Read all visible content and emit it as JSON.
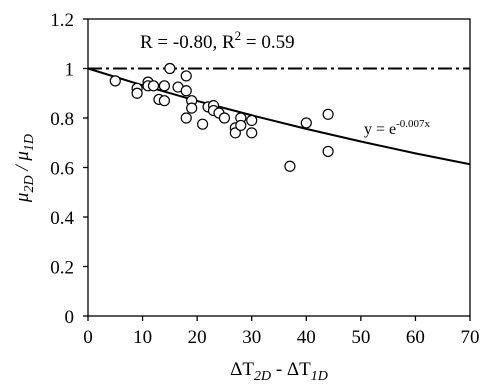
{
  "chart_data": {
    "type": "scatter",
    "x": [
      5,
      9,
      9,
      11,
      11,
      12,
      13,
      14,
      14,
      15,
      16.5,
      18,
      18,
      18,
      19,
      19,
      21,
      22,
      23,
      23,
      24,
      25,
      27,
      27,
      28,
      28,
      30,
      30,
      37,
      40,
      44,
      44
    ],
    "values": [
      0.95,
      0.92,
      0.9,
      0.945,
      0.93,
      0.93,
      0.875,
      0.87,
      0.93,
      1.0,
      0.925,
      0.97,
      0.91,
      0.8,
      0.87,
      0.84,
      0.775,
      0.845,
      0.85,
      0.83,
      0.82,
      0.8,
      0.76,
      0.74,
      0.8,
      0.77,
      0.79,
      0.74,
      0.605,
      0.78,
      0.815,
      0.665
    ],
    "fit_curve": {
      "x": [
        0,
        10,
        20,
        30,
        40,
        50,
        60,
        70
      ],
      "values": [
        1,
        0.932,
        0.869,
        0.811,
        0.756,
        0.705,
        0.657,
        0.613
      ]
    },
    "reference_line": 1,
    "annotation": [
      "R = -0.80, R",
      "2",
      " = 0.59"
    ],
    "fit_label": [
      "y = e",
      "-0.007x"
    ],
    "x_label": [
      "ΔT",
      "2D",
      " - ΔT",
      "1D"
    ],
    "y_label": [
      "μ",
      "2D",
      " / μ",
      "1D"
    ],
    "xlim": [
      0,
      70
    ],
    "xticks": [
      0,
      10,
      20,
      30,
      40,
      50,
      60,
      70
    ],
    "ylim": [
      0,
      1.2
    ],
    "yticks": [
      0,
      0.2,
      0.4,
      0.6,
      0.8,
      1,
      1.2
    ],
    "color": "#000000"
  }
}
